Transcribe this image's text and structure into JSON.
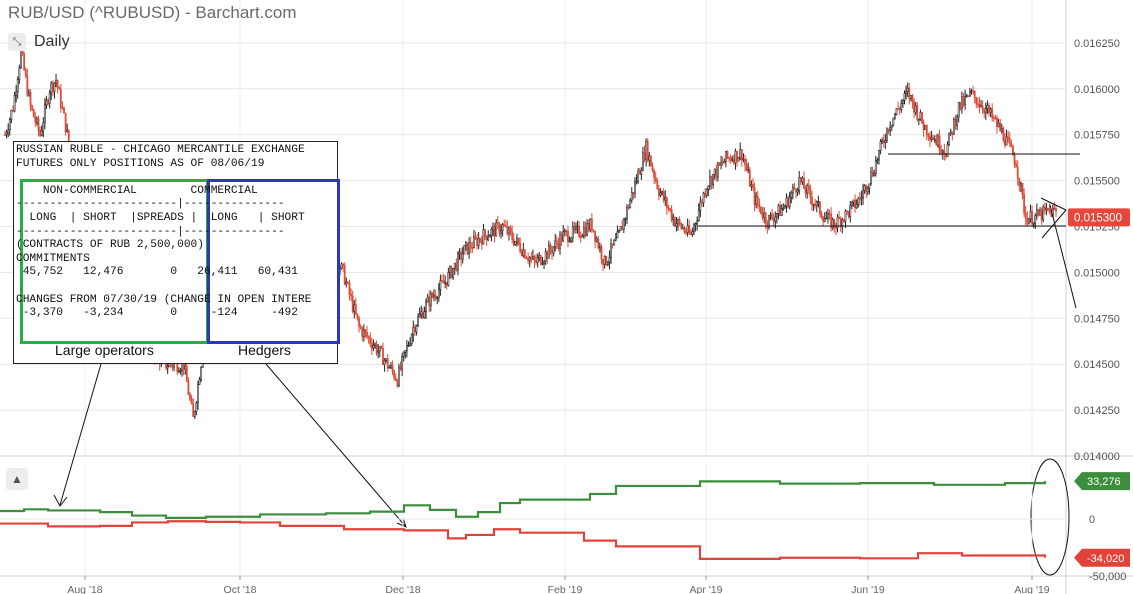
{
  "title": "RUB/USD (^RUBUSD) - Barchart.com",
  "period": "Daily",
  "colors": {
    "up": "#222222",
    "down": "#e14b37",
    "green": "#3c8e3c",
    "red": "#e0433a",
    "noncommercial_box": "#29ad46",
    "commercial_box": "#2b38b8",
    "grid": "#e6e6e6"
  },
  "chart_data": [
    {
      "type": "candlestick",
      "title": "RUB/USD (^RUBUSD) - Barchart.com",
      "period": "Daily",
      "ylim": [
        0.014,
        0.0164
      ],
      "y_ticks": [
        "0.016250",
        "0.016000",
        "0.015750",
        "0.015500",
        "0.015250",
        "0.015000",
        "0.014750",
        "0.014500",
        "0.014250",
        "0.014000"
      ],
      "x_ticks": [
        "Aug '18",
        "Oct '18",
        "Dec '18",
        "Feb '19",
        "Apr '19",
        "Jun '19",
        "Aug '19"
      ],
      "last_price": "0.015300",
      "anchors": [
        [
          0,
          0.01575
        ],
        [
          5,
          0.0159
        ],
        [
          10,
          0.0162
        ],
        [
          16,
          0.0159
        ],
        [
          22,
          0.01575
        ],
        [
          28,
          0.016
        ],
        [
          32,
          0.01605
        ],
        [
          38,
          0.0158
        ],
        [
          46,
          0.0154
        ],
        [
          55,
          0.0153
        ],
        [
          70,
          0.0152
        ],
        [
          80,
          0.0149
        ],
        [
          90,
          0.0146
        ],
        [
          100,
          0.0145
        ],
        [
          112,
          0.0145
        ],
        [
          118,
          0.0142
        ],
        [
          126,
          0.0147
        ],
        [
          132,
          0.0148
        ],
        [
          142,
          0.0149
        ],
        [
          152,
          0.015
        ],
        [
          160,
          0.0149
        ],
        [
          170,
          0.01495
        ],
        [
          176,
          0.01505
        ],
        [
          188,
          0.0151
        ],
        [
          200,
          0.0152
        ],
        [
          212,
          0.015
        ],
        [
          222,
          0.0147
        ],
        [
          232,
          0.0146
        ],
        [
          246,
          0.01442
        ],
        [
          256,
          0.0147
        ],
        [
          266,
          0.01485
        ],
        [
          276,
          0.01495
        ],
        [
          288,
          0.01512
        ],
        [
          300,
          0.0152
        ],
        [
          312,
          0.01525
        ],
        [
          322,
          0.01515
        ],
        [
          332,
          0.01505
        ],
        [
          342,
          0.01512
        ],
        [
          350,
          0.0152
        ],
        [
          360,
          0.01522
        ],
        [
          368,
          0.01526
        ],
        [
          376,
          0.01505
        ],
        [
          385,
          0.0152
        ],
        [
          394,
          0.01545
        ],
        [
          402,
          0.01568
        ],
        [
          410,
          0.01545
        ],
        [
          420,
          0.01528
        ],
        [
          430,
          0.0152
        ],
        [
          440,
          0.01548
        ],
        [
          452,
          0.01562
        ],
        [
          462,
          0.01565
        ],
        [
          470,
          0.0154
        ],
        [
          478,
          0.01528
        ],
        [
          488,
          0.01535
        ],
        [
          498,
          0.0155
        ],
        [
          506,
          0.0154
        ],
        [
          514,
          0.0153
        ],
        [
          520,
          0.01526
        ],
        [
          528,
          0.01532
        ],
        [
          536,
          0.0154
        ],
        [
          544,
          0.01555
        ],
        [
          554,
          0.0158
        ],
        [
          566,
          0.01598
        ],
        [
          576,
          0.0158
        ],
        [
          584,
          0.01572
        ],
        [
          590,
          0.01566
        ],
        [
          598,
          0.0159
        ],
        [
          606,
          0.01597
        ],
        [
          616,
          0.01588
        ],
        [
          626,
          0.01575
        ],
        [
          634,
          0.0156
        ],
        [
          640,
          0.0153
        ],
        [
          646,
          0.0153
        ],
        [
          654,
          0.01533
        ]
      ]
    },
    {
      "type": "line",
      "ylim": [
        -50000,
        40000
      ],
      "y_ticks": [
        "0",
        "-50,000"
      ],
      "series": [
        {
          "last": "33,276",
          "steps": [
            [
              0,
              7000
            ],
            [
              24,
              8500
            ],
            [
              48,
              7500
            ],
            [
              100,
              6000
            ],
            [
              132,
              3000
            ],
            [
              166,
              1000
            ],
            [
              206,
              2000
            ],
            [
              260,
              4000
            ],
            [
              326,
              5000
            ],
            [
              370,
              6500
            ],
            [
              404,
              12000
            ],
            [
              430,
              8000
            ],
            [
              456,
              2000
            ],
            [
              478,
              6000
            ],
            [
              500,
              14000
            ],
            [
              520,
              17000
            ],
            [
              590,
              22000
            ],
            [
              616,
              29000
            ],
            [
              700,
              33000
            ],
            [
              780,
              31000
            ],
            [
              860,
              31500
            ],
            [
              934,
              30000
            ],
            [
              1005,
              31500
            ],
            [
              1045,
              33276
            ]
          ]
        },
        {
          "last": "-34,020",
          "steps": [
            [
              0,
              -4000
            ],
            [
              48,
              -6500
            ],
            [
              100,
              -6000
            ],
            [
              132,
              -3000
            ],
            [
              168,
              -2000
            ],
            [
              206,
              -2500
            ],
            [
              240,
              -3000
            ],
            [
              280,
              -6000
            ],
            [
              344,
              -9000
            ],
            [
              404,
              -10000
            ],
            [
              448,
              -17000
            ],
            [
              466,
              -14000
            ],
            [
              494,
              -9000
            ],
            [
              520,
              -12000
            ],
            [
              584,
              -19000
            ],
            [
              616,
              -24000
            ],
            [
              700,
              -35000
            ],
            [
              780,
              -34000
            ],
            [
              860,
              -34500
            ],
            [
              918,
              -30000
            ],
            [
              962,
              -32000
            ],
            [
              1045,
              -34020
            ]
          ]
        }
      ]
    }
  ],
  "cot_report": {
    "lines": [
      "RUSSIAN RUBLE - CHICAGO MERCANTILE EXCHANGE",
      "FUTURES ONLY POSITIONS AS OF 08/06/19",
      "",
      "    NON-COMMERCIAL        COMMERCIAL",
      "------------------------|---------------",
      "  LONG  | SHORT  |SPREADS |  LONG   | SHORT",
      "------------------------|---------------",
      "(CONTRACTS OF RUB 2,500,000)",
      "COMMITMENTS",
      " 45,752   12,476       0   26,411   60,431",
      "",
      "CHANGES FROM 07/30/19 (CHANGE IN OPEN INTERE",
      " -3,370   -3,234       0     -124     -492"
    ],
    "noncommercial_caption": "Large operators",
    "commercial_caption": "Hedgers"
  }
}
